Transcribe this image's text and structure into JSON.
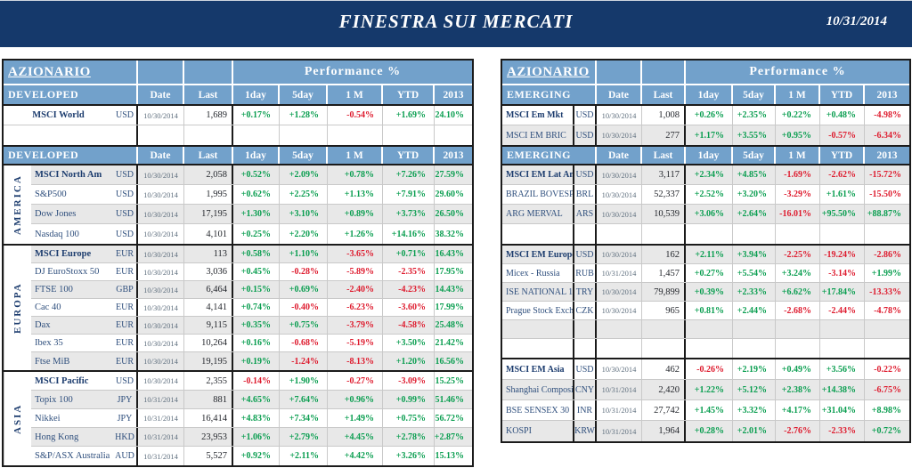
{
  "banner": {
    "title": "FINESTRA SUI MERCATI",
    "date": "10/31/2014"
  },
  "columns": {
    "date": "Date",
    "last": "Last",
    "perf": [
      "1day",
      "5day",
      "1 M",
      "YTD",
      "2013"
    ]
  },
  "colors": {
    "banner_bg": "#15396B",
    "header_bg": "#72A1CB",
    "positive": "#0A9E50",
    "negative": "#DE1B2E",
    "row_stripe": "#E8E8E8",
    "index_name": "#2F4F7D",
    "index_name_bold": "#1C3C6E",
    "grid_line": "#C9C9C9",
    "table_border": "#1B1B1B"
  },
  "left": {
    "title": "AZIONARIO",
    "perf_title": "Performance %",
    "group_label": "DEVELOPED",
    "summary_rows": [
      {
        "name": "MSCI World",
        "bold": true,
        "bg": "white",
        "ccy": "USD",
        "date": "10/30/2014",
        "last": "1,689",
        "perf": [
          "+0.17%",
          "+1.28%",
          "-0.54%",
          "+1.69%",
          "+24.10%"
        ]
      },
      {
        "empty": true,
        "bg": "white"
      }
    ],
    "sections": [
      {
        "region": "AMERICA",
        "rows": [
          {
            "name": "MSCI North Am",
            "bold": true,
            "bg": "gray",
            "ccy": "USD",
            "date": "10/30/2014",
            "last": "2,058",
            "perf": [
              "+0.52%",
              "+2.09%",
              "+0.78%",
              "+7.26%",
              "+27.59%"
            ]
          },
          {
            "name": "S&P500",
            "bg": "white",
            "ccy": "USD",
            "date": "10/30/2014",
            "last": "1,995",
            "perf": [
              "+0.62%",
              "+2.25%",
              "+1.13%",
              "+7.91%",
              "+29.60%"
            ]
          },
          {
            "name": "Dow Jones",
            "bg": "gray",
            "ccy": "USD",
            "date": "10/30/2014",
            "last": "17,195",
            "perf": [
              "+1.30%",
              "+3.10%",
              "+0.89%",
              "+3.73%",
              "+26.50%"
            ]
          },
          {
            "name": "Nasdaq 100",
            "bg": "white",
            "ccy": "USD",
            "date": "10/30/2014",
            "last": "4,101",
            "perf": [
              "+0.25%",
              "+2.20%",
              "+1.26%",
              "+14.16%",
              "+38.32%"
            ]
          }
        ]
      },
      {
        "region": "EUROPA",
        "rows": [
          {
            "name": "MSCI Europe",
            "bold": true,
            "bg": "gray",
            "ccy": "EUR",
            "date": "10/30/2014",
            "last": "113",
            "perf": [
              "+0.58%",
              "+1.10%",
              "-3.65%",
              "+0.71%",
              "+16.43%"
            ]
          },
          {
            "name": "DJ EuroStoxx 50",
            "bg": "white",
            "ccy": "EUR",
            "date": "10/30/2014",
            "last": "3,036",
            "perf": [
              "+0.45%",
              "-0.28%",
              "-5.89%",
              "-2.35%",
              "+17.95%"
            ]
          },
          {
            "name": "FTSE 100",
            "bg": "gray",
            "ccy": "GBP",
            "date": "10/30/2014",
            "last": "6,464",
            "perf": [
              "+0.15%",
              "+0.69%",
              "-2.40%",
              "-4.23%",
              "+14.43%"
            ]
          },
          {
            "name": "Cac 40",
            "bg": "white",
            "ccy": "EUR",
            "date": "10/30/2014",
            "last": "4,141",
            "perf": [
              "+0.74%",
              "-0.40%",
              "-6.23%",
              "-3.60%",
              "+17.99%"
            ]
          },
          {
            "name": "Dax",
            "bg": "gray",
            "ccy": "EUR",
            "date": "10/30/2014",
            "last": "9,115",
            "perf": [
              "+0.35%",
              "+0.75%",
              "-3.79%",
              "-4.58%",
              "+25.48%"
            ]
          },
          {
            "name": "Ibex 35",
            "bg": "white",
            "ccy": "EUR",
            "date": "10/30/2014",
            "last": "10,264",
            "perf": [
              "+0.16%",
              "-0.68%",
              "-5.19%",
              "+3.50%",
              "+21.42%"
            ]
          },
          {
            "name": "Ftse MiB",
            "bg": "gray",
            "ccy": "EUR",
            "date": "10/30/2014",
            "last": "19,195",
            "perf": [
              "+0.19%",
              "-1.24%",
              "-8.13%",
              "+1.20%",
              "+16.56%"
            ]
          }
        ]
      },
      {
        "region": "ASIA",
        "rows": [
          {
            "name": "MSCI Pacific",
            "bold": true,
            "bg": "white",
            "ccy": "USD",
            "date": "10/30/2014",
            "last": "2,355",
            "perf": [
              "-0.14%",
              "+1.90%",
              "-0.27%",
              "-3.09%",
              "+15.25%"
            ]
          },
          {
            "name": "Topix 100",
            "bg": "gray",
            "ccy": "JPY",
            "date": "10/31/2014",
            "last": "881",
            "perf": [
              "+4.65%",
              "+7.64%",
              "+0.96%",
              "+0.99%",
              "+51.46%"
            ]
          },
          {
            "name": "Nikkei",
            "bg": "white",
            "ccy": "JPY",
            "date": "10/31/2014",
            "last": "16,414",
            "perf": [
              "+4.83%",
              "+7.34%",
              "+1.49%",
              "+0.75%",
              "+56.72%"
            ]
          },
          {
            "name": "Hong Kong",
            "bg": "gray",
            "ccy": "HKD",
            "date": "10/31/2014",
            "last": "23,953",
            "perf": [
              "+1.06%",
              "+2.79%",
              "+4.45%",
              "+2.78%",
              "+2.87%"
            ]
          },
          {
            "name": "S&P/ASX Australia",
            "bg": "white",
            "ccy": "AUD",
            "date": "10/31/2014",
            "last": "5,527",
            "perf": [
              "+0.92%",
              "+2.11%",
              "+4.42%",
              "+3.26%",
              "+15.13%"
            ]
          }
        ]
      }
    ]
  },
  "right": {
    "title": "AZIONARIO",
    "perf_title": "Performance %",
    "group_label": "EMERGING",
    "summary_rows": [
      {
        "name": "MSCI Em Mkt",
        "bold": true,
        "bg": "white",
        "ccy": "USD",
        "date": "10/30/2014",
        "last": "1,008",
        "perf": [
          "+0.26%",
          "+2.35%",
          "+0.22%",
          "+0.48%",
          "-4.98%"
        ]
      },
      {
        "name": "MSCI EM BRIC",
        "bg": "gray",
        "ccy": "USD",
        "date": "10/30/2014",
        "last": "277",
        "perf": [
          "+1.17%",
          "+3.55%",
          "+0.95%",
          "-0.57%",
          "-6.34%"
        ]
      }
    ],
    "sections": [
      {
        "region": "",
        "rows": [
          {
            "name": "MSCI EM Lat Am",
            "bold": true,
            "bg": "gray",
            "ccy": "USD",
            "date": "10/30/2014",
            "last": "3,117",
            "perf": [
              "+2.34%",
              "+4.85%",
              "-1.69%",
              "-2.62%",
              "-15.72%"
            ]
          },
          {
            "name": "BRAZIL BOVESP.",
            "bg": "white",
            "ccy": "BRL",
            "date": "10/30/2014",
            "last": "52,337",
            "perf": [
              "+2.52%",
              "+3.20%",
              "-3.29%",
              "+1.61%",
              "-15.50%"
            ]
          },
          {
            "name": "ARG MERVAL",
            "bg": "gray",
            "ccy": "ARS",
            "date": "10/30/2014",
            "last": "10,539",
            "perf": [
              "+3.06%",
              "+2.64%",
              "-16.01%",
              "+95.50%",
              "+88.87%"
            ]
          },
          {
            "empty": true,
            "bg": "white"
          }
        ]
      },
      {
        "region": "",
        "rows": [
          {
            "name": "MSCI EM Europe",
            "bold": true,
            "bg": "gray",
            "ccy": "USD",
            "date": "10/30/2014",
            "last": "162",
            "perf": [
              "+2.11%",
              "+3.94%",
              "-2.25%",
              "-19.24%",
              "-2.86%"
            ]
          },
          {
            "name": "Micex - Russia",
            "bg": "white",
            "ccy": "RUB",
            "date": "10/31/2014",
            "last": "1,457",
            "perf": [
              "+0.27%",
              "+5.54%",
              "+3.24%",
              "-3.14%",
              "+1.99%"
            ]
          },
          {
            "name": "ISE NATIONAL 1",
            "bg": "gray",
            "ccy": "TRY",
            "date": "10/30/2014",
            "last": "79,899",
            "perf": [
              "+0.39%",
              "+2.33%",
              "+6.62%",
              "+17.84%",
              "-13.33%"
            ]
          },
          {
            "name": "Prague Stock Exch.",
            "bg": "white",
            "ccy": "CZK",
            "date": "10/30/2014",
            "last": "965",
            "perf": [
              "+0.81%",
              "+2.44%",
              "-2.68%",
              "-2.44%",
              "-4.78%"
            ]
          },
          {
            "empty": true,
            "bg": "gray"
          },
          {
            "empty": true,
            "bg": "white"
          }
        ]
      },
      {
        "region": "",
        "rows": [
          {
            "name": "MSCI EM Asia",
            "bold": true,
            "bg": "white",
            "ccy": "USD",
            "date": "10/30/2014",
            "last": "462",
            "perf": [
              "-0.26%",
              "+2.19%",
              "+0.49%",
              "+3.56%",
              "-0.22%"
            ]
          },
          {
            "name": "Shanghai Composite",
            "bg": "gray",
            "ccy": "CNY",
            "date": "10/31/2014",
            "last": "2,420",
            "perf": [
              "+1.22%",
              "+5.12%",
              "+2.38%",
              "+14.38%",
              "-6.75%"
            ]
          },
          {
            "name": "BSE SENSEX 30",
            "bg": "white",
            "ccy": "INR",
            "date": "10/31/2014",
            "last": "27,742",
            "perf": [
              "+1.45%",
              "+3.32%",
              "+4.17%",
              "+31.04%",
              "+8.98%"
            ]
          },
          {
            "name": "KOSPI",
            "bg": "gray",
            "ccy": "KRW",
            "date": "10/31/2014",
            "last": "1,964",
            "perf": [
              "+0.28%",
              "+2.01%",
              "-2.76%",
              "-2.33%",
              "+0.72%"
            ]
          }
        ]
      }
    ]
  }
}
